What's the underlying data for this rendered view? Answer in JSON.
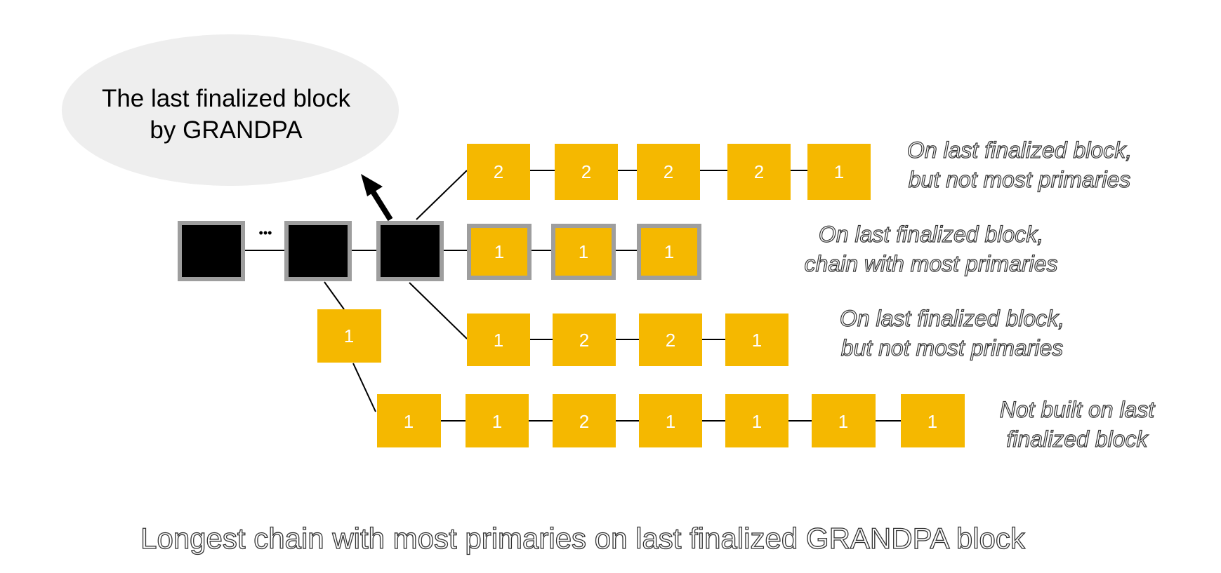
{
  "bubble": {
    "line1": "The last finalized block",
    "line2": "by GRANDPA"
  },
  "ellipsis": "•••",
  "chains": {
    "row1": {
      "labels": [
        "2",
        "2",
        "2",
        "2",
        "1"
      ],
      "note_line1": "On last finalized block,",
      "note_line2": "but not most primaries"
    },
    "row2": {
      "labels": [
        "1",
        "1",
        "1"
      ],
      "note_line1": "On last finalized block,",
      "note_line2": "chain with most primaries"
    },
    "row3": {
      "labels": [
        "1",
        "2",
        "2",
        "1"
      ],
      "note_line1": "On last finalized block,",
      "note_line2": "but not most primaries"
    },
    "fork": {
      "labels": [
        "1"
      ]
    },
    "row4": {
      "labels": [
        "1",
        "1",
        "2",
        "1",
        "1",
        "1",
        "1"
      ],
      "note_line1": "Not built on last",
      "note_line2": "finalized block"
    }
  },
  "caption": "Longest chain with most primaries on last finalized GRANDPA block",
  "colors": {
    "block_yellow": "#F5B800",
    "block_black": "#000000",
    "block_border_gray": "#9E9E9E",
    "bubble_fill": "#EEEEEE",
    "line": "#000000"
  }
}
